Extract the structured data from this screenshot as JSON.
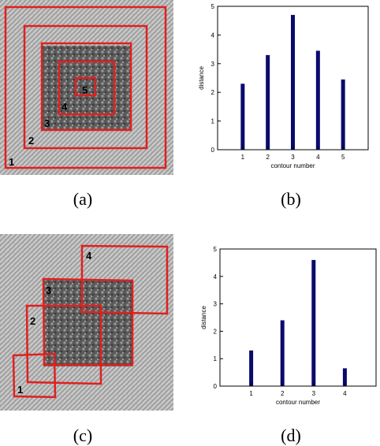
{
  "captions": {
    "a": "(a)",
    "b": "(b)",
    "c": "(c)",
    "d": "(d)"
  },
  "colors": {
    "contour": "#e21f1f",
    "bar": "#0a0a6e",
    "label": "#000000"
  },
  "image_a": {
    "contour_labels": [
      "1",
      "2",
      "3",
      "4",
      "5"
    ]
  },
  "image_c": {
    "contour_labels": [
      "1",
      "2",
      "3",
      "4"
    ]
  },
  "chart_data": [
    {
      "type": "bar",
      "categories": [
        "1",
        "2",
        "3",
        "4",
        "5"
      ],
      "values": [
        2.3,
        3.3,
        4.7,
        3.45,
        2.45
      ],
      "xlabel": "contour number",
      "ylabel": "distance",
      "ylim": [
        0,
        5
      ],
      "yticks": [
        "0",
        "1",
        "2",
        "3",
        "4",
        "5"
      ]
    },
    {
      "type": "bar",
      "categories": [
        "1",
        "2",
        "3",
        "4"
      ],
      "values": [
        1.3,
        2.4,
        4.6,
        0.65
      ],
      "xlabel": "contour number",
      "ylabel": "distance",
      "ylim": [
        0,
        5
      ],
      "yticks": [
        "0",
        "1",
        "2",
        "3",
        "4",
        "5"
      ]
    }
  ]
}
